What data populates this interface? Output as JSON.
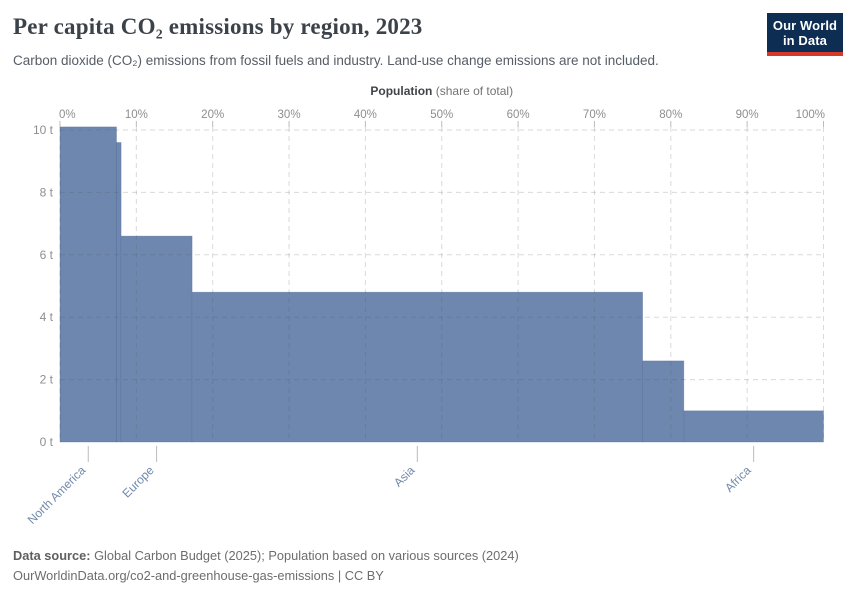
{
  "header": {
    "title": "Per capita CO₂ emissions by region, 2023",
    "subtitle": "Carbon dioxide (CO₂) emissions from fossil fuels and industry. Land-use change emissions are not included.",
    "logo": {
      "line1": "Our World",
      "line2": "in Data"
    }
  },
  "chart_data": {
    "type": "bar",
    "variant": "marimekko",
    "title": "Per capita CO₂ emissions by region, 2023",
    "x_axis": {
      "position": "top",
      "label_bold": "Population",
      "label_rest": " (share of total)",
      "tick_labels": [
        "0%",
        "10%",
        "20%",
        "30%",
        "40%",
        "50%",
        "60%",
        "70%",
        "80%",
        "90%",
        "100%"
      ],
      "range_pct": [
        0,
        100
      ]
    },
    "y_axis": {
      "tick_labels": [
        "0 t",
        "2 t",
        "4 t",
        "6 t",
        "8 t",
        "10 t"
      ],
      "range_t": [
        0,
        10
      ],
      "unit": "tonnes per person"
    },
    "grid": "dashed, drawn over bars",
    "legend": "none",
    "bars": [
      {
        "label": "North America",
        "population_share_pct": 7.4,
        "per_capita_t": 10.1
      },
      {
        "label": "",
        "population_share_pct": 0.6,
        "per_capita_t": 9.6
      },
      {
        "label": "Europe",
        "population_share_pct": 9.3,
        "per_capita_t": 6.6
      },
      {
        "label": "Asia",
        "population_share_pct": 59.0,
        "per_capita_t": 4.8
      },
      {
        "label": "",
        "population_share_pct": 5.4,
        "per_capita_t": 2.6
      },
      {
        "label": "Africa",
        "population_share_pct": 18.3,
        "per_capita_t": 1.0
      }
    ],
    "colors": {
      "bar_fill": "#6d87ae",
      "bar_edge": "#4e6797",
      "grid_line": "#555555",
      "axis_tick_text": "#8e8e8e",
      "region_label": "#7089aa",
      "axis_title_bold": "#3f4449",
      "axis_title_rest": "#737373",
      "tick_mark": "#bbbbbb"
    }
  },
  "footer": {
    "source_label": "Data source:",
    "source_text": " Global Carbon Budget (2025); Population based on various sources (2024)",
    "cc_line": "OurWorldinData.org/co2-and-greenhouse-gas-emissions | CC BY"
  }
}
